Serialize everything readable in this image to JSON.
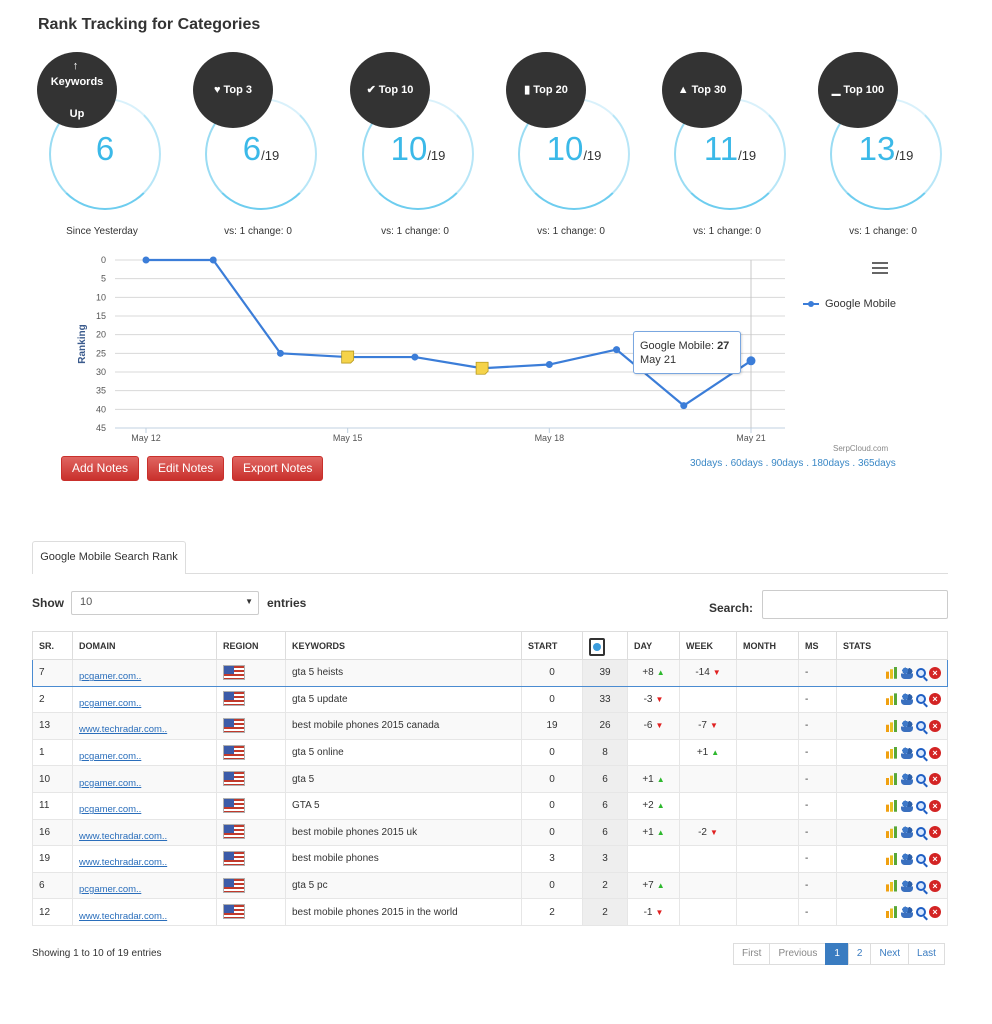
{
  "page_title": "Rank Tracking for Categories",
  "stats": [
    {
      "label_lines": [
        "Keywords",
        "Up"
      ],
      "icon": "arrow-up-icon",
      "glyph": "↑",
      "value": "6",
      "total": "",
      "caption": "Since Yesterday"
    },
    {
      "label_lines": [
        "Top 3"
      ],
      "icon": "heart-icon",
      "glyph": "♥",
      "value": "6",
      "total": "/19",
      "caption": "vs: 1 change: 0"
    },
    {
      "label_lines": [
        "Top 10"
      ],
      "icon": "check-icon",
      "glyph": "✔",
      "value": "10",
      "total": "/19",
      "caption": "vs: 1 change: 0"
    },
    {
      "label_lines": [
        "Top 20"
      ],
      "icon": "bookmark-icon",
      "glyph": "▮",
      "value": "10",
      "total": "/19",
      "caption": "vs: 1 change: 0"
    },
    {
      "label_lines": [
        "Top 30"
      ],
      "icon": "road-icon",
      "glyph": "▲",
      "value": "11",
      "total": "/19",
      "caption": "vs: 1 change: 0"
    },
    {
      "label_lines": [
        "Top 100"
      ],
      "icon": "signal-icon",
      "glyph": "▁",
      "value": "13",
      "total": "/19",
      "caption": "vs: 1 change: 0"
    }
  ],
  "chart_data": {
    "type": "line",
    "ylabel": "Ranking",
    "y_reversed": true,
    "ylim": [
      0,
      45
    ],
    "y_ticks": [
      0,
      5,
      10,
      15,
      20,
      25,
      30,
      35,
      40,
      45
    ],
    "x_ticks": [
      "May 12",
      "May 15",
      "May 18",
      "May 21"
    ],
    "x": [
      "May 12",
      "May 13",
      "May 14",
      "May 15",
      "May 16",
      "May 17",
      "May 18",
      "May 19",
      "May 20",
      "May 21"
    ],
    "series": [
      {
        "name": "Google Mobile",
        "color": "#3b7dd8",
        "values": [
          0,
          0,
          25,
          26,
          26,
          29,
          28,
          24,
          39,
          27
        ]
      }
    ],
    "notes_at": [
      "May 15",
      "May 17"
    ],
    "legend_position": "right",
    "grid": true,
    "tooltip": {
      "series": "Google Mobile",
      "value": "27",
      "date": "May 21"
    },
    "credit": "SerpCloud.com"
  },
  "chart_menu_icon": "hamburger-icon",
  "ranges": [
    "30days",
    "60days",
    "90days",
    "180days",
    "365days"
  ],
  "range_separator": " . ",
  "buttons": {
    "add_notes": "Add Notes",
    "edit_notes": "Edit Notes",
    "export_notes": "Export Notes"
  },
  "tab_label": "Google Mobile Search Rank",
  "length": {
    "show": "Show",
    "value": "10",
    "entries": "entries"
  },
  "search_label": "Search:",
  "columns": [
    "SR.",
    "DOMAIN",
    "REGION",
    "KEYWORDS",
    "START",
    "",
    "DAY",
    "WEEK",
    "MONTH",
    "MS",
    "STATS"
  ],
  "rows": [
    {
      "sr": "7",
      "domain": "pcgamer.com..",
      "keyword": "gta 5 heists",
      "start": "0",
      "current": "39",
      "day": "+8",
      "day_dir": "up",
      "week": "-14",
      "week_dir": "down",
      "month": "",
      "ms": "-",
      "selected": true
    },
    {
      "sr": "2",
      "domain": "pcgamer.com..",
      "keyword": "gta 5 update",
      "start": "0",
      "current": "33",
      "day": "-3",
      "day_dir": "down",
      "week": "",
      "week_dir": "",
      "month": "",
      "ms": "-"
    },
    {
      "sr": "13",
      "domain": "www.techradar.com..",
      "keyword": "best mobile phones 2015 canada",
      "start": "19",
      "current": "26",
      "day": "-6",
      "day_dir": "down",
      "week": "-7",
      "week_dir": "down",
      "month": "",
      "ms": "-"
    },
    {
      "sr": "1",
      "domain": "pcgamer.com..",
      "keyword": "gta 5 online",
      "start": "0",
      "current": "8",
      "day": "",
      "day_dir": "",
      "week": "+1",
      "week_dir": "up",
      "month": "",
      "ms": "-"
    },
    {
      "sr": "10",
      "domain": "pcgamer.com..",
      "keyword": "gta 5",
      "start": "0",
      "current": "6",
      "day": "+1",
      "day_dir": "up",
      "week": "",
      "week_dir": "",
      "month": "",
      "ms": "-"
    },
    {
      "sr": "11",
      "domain": "pcgamer.com..",
      "keyword": "GTA 5",
      "start": "0",
      "current": "6",
      "day": "+2",
      "day_dir": "up",
      "week": "",
      "week_dir": "",
      "month": "",
      "ms": "-"
    },
    {
      "sr": "16",
      "domain": "www.techradar.com..",
      "keyword": "best mobile phones 2015 uk",
      "start": "0",
      "current": "6",
      "day": "+1",
      "day_dir": "up",
      "week": "-2",
      "week_dir": "down",
      "month": "",
      "ms": "-"
    },
    {
      "sr": "19",
      "domain": "www.techradar.com..",
      "keyword": "best mobile phones",
      "start": "3",
      "current": "3",
      "day": "",
      "day_dir": "",
      "week": "",
      "week_dir": "",
      "month": "",
      "ms": "-"
    },
    {
      "sr": "6",
      "domain": "pcgamer.com..",
      "keyword": "gta 5 pc",
      "start": "0",
      "current": "2",
      "day": "+7",
      "day_dir": "up",
      "week": "",
      "week_dir": "",
      "month": "",
      "ms": "-"
    },
    {
      "sr": "12",
      "domain": "www.techradar.com..",
      "keyword": "best mobile phones 2015 in the world",
      "start": "2",
      "current": "2",
      "day": "-1",
      "day_dir": "down",
      "week": "",
      "week_dir": "",
      "month": "",
      "ms": "-"
    }
  ],
  "info": "Showing 1 to 10 of 19 entries",
  "pagination": {
    "first": "First",
    "previous": "Previous",
    "pages": [
      "1",
      "2"
    ],
    "active": "1",
    "next": "Next",
    "last": "Last"
  },
  "colors": {
    "accent": "#3bb9e8",
    "badge": "#333333",
    "button_red": "#d9534f",
    "line": "#3b7dd8",
    "link": "#2a6ebb"
  }
}
